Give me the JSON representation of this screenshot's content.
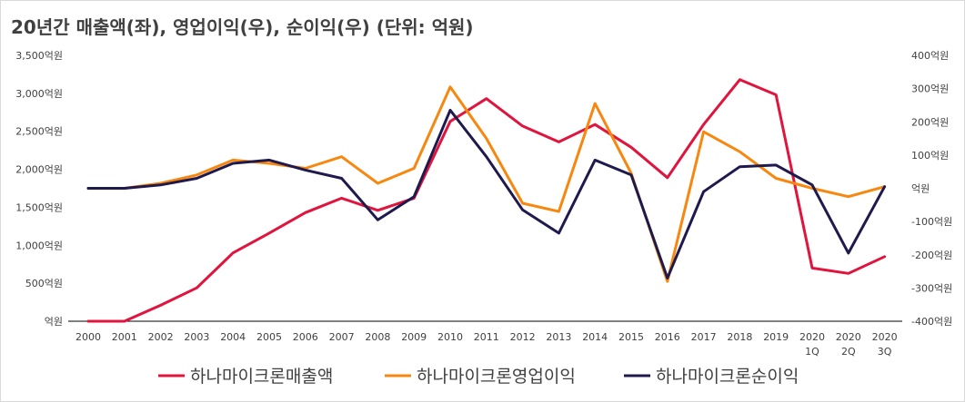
{
  "chart_data": {
    "type": "line",
    "title": "20년간 매출액(좌), 영업이익(우), 순이익(우) (단위: 억원)",
    "categories": [
      "2000",
      "2001",
      "2002",
      "2003",
      "2004",
      "2005",
      "2006",
      "2007",
      "2008",
      "2009",
      "2010",
      "2011",
      "2012",
      "2013",
      "2014",
      "2015",
      "2016",
      "2017",
      "2018",
      "2019",
      "2020\n1Q",
      "2020\n2Q",
      "2020\n3Q"
    ],
    "left_axis": {
      "ylim": [
        0,
        3500
      ],
      "ticks": [
        0,
        500,
        1000,
        1500,
        2000,
        2500,
        3000,
        3500
      ],
      "tick_labels": [
        "억원",
        "500억원",
        "1,000억원",
        "1,500억원",
        "2,000억원",
        "2,500억원",
        "3,000억원",
        "3,500억원"
      ]
    },
    "right_axis": {
      "ylim": [
        -400,
        400
      ],
      "ticks": [
        -400,
        -300,
        -200,
        -100,
        0,
        100,
        200,
        300,
        400
      ],
      "tick_labels": [
        "-400억원",
        "-300억원",
        "-200억원",
        "-100억원",
        "억원",
        "100억원",
        "200억원",
        "300억원",
        "400억원"
      ]
    },
    "series": [
      {
        "name": "하나마이크론매출액",
        "axis": "left",
        "color": "#e0143c",
        "values": [
          0,
          0,
          210,
          440,
          900,
          1160,
          1430,
          1620,
          1460,
          1620,
          2630,
          2930,
          2570,
          2360,
          2590,
          2290,
          1890,
          2590,
          3180,
          2980,
          700,
          630,
          850
        ]
      },
      {
        "name": "하나마이크론영업이익",
        "axis": "right",
        "color": "#f7870f",
        "values": [
          0,
          0,
          15,
          40,
          85,
          75,
          60,
          95,
          15,
          60,
          305,
          150,
          -45,
          -70,
          255,
          45,
          -280,
          170,
          110,
          30,
          0,
          -25,
          5
        ]
      },
      {
        "name": "하나마이크론순이익",
        "axis": "right",
        "color": "#1f1a4e",
        "values": [
          0,
          0,
          10,
          30,
          75,
          85,
          55,
          30,
          -95,
          -25,
          235,
          95,
          -65,
          -135,
          85,
          40,
          -270,
          -10,
          65,
          70,
          10,
          -195,
          5
        ]
      }
    ],
    "legend": {
      "position": "bottom"
    },
    "grid": false
  }
}
